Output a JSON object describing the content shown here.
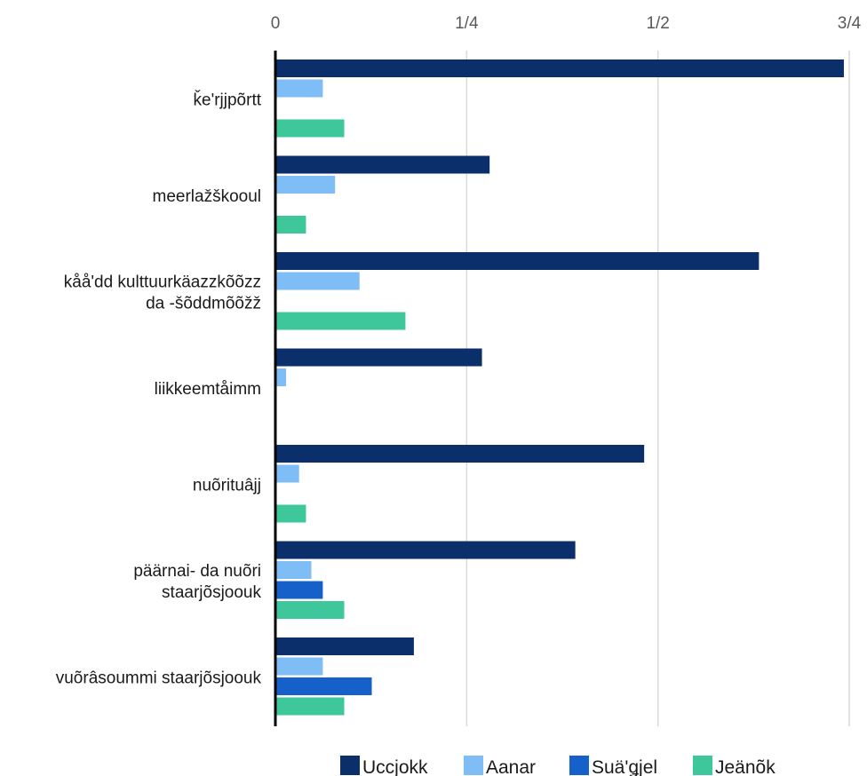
{
  "chart_data": {
    "type": "bar",
    "orientation": "horizontal",
    "categories": [
      [
        "ǩe'rjjpõrtt"
      ],
      [
        "meerlažškooul"
      ],
      [
        "kåå'dd kulttuurkäazzkõõzz",
        "da -šõddmõõžž"
      ],
      [
        "liikkeemtåimm"
      ],
      [
        "nuõrituâjj"
      ],
      [
        "päärnai- da nuõri",
        "staarjõsjoouk"
      ],
      [
        "vuõrâsoummi staarjõsjoouk"
      ]
    ],
    "series": [
      {
        "name": "Ucсjokk",
        "color": "#0b2f6b",
        "values": [
          0.743,
          0.28,
          0.632,
          0.27,
          0.482,
          0.392,
          0.181
        ]
      },
      {
        "name": "Aanar",
        "color": "#7fbdf7",
        "values": [
          0.062,
          0.078,
          0.11,
          0.014,
          0.031,
          0.047,
          0.062
        ]
      },
      {
        "name": "Suä'ǥjel",
        "color": "#1560c9",
        "values": [
          null,
          null,
          null,
          null,
          null,
          0.062,
          0.126
        ]
      },
      {
        "name": "Jeänõk",
        "color": "#3ec79a",
        "values": [
          0.09,
          0.04,
          0.17,
          null,
          0.04,
          0.09,
          0.09
        ]
      }
    ],
    "xlim": [
      0,
      0.75
    ],
    "xticks": [
      0,
      0.25,
      0.5,
      0.75
    ],
    "xtick_labels": [
      "0",
      "1/4",
      "1/2",
      "3/4"
    ],
    "grid": true,
    "legend": "bottom"
  }
}
